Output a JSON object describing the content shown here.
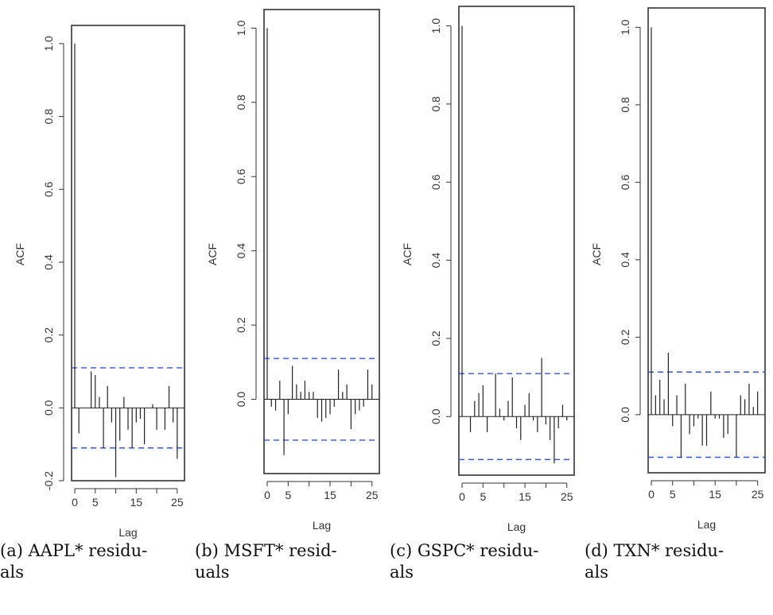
{
  "chart_data": [
    {
      "type": "bar",
      "xlabel": "Lag",
      "ylabel": "ACF",
      "xlim": [
        0,
        26
      ],
      "ylim": [
        -0.2,
        1.05
      ],
      "x_ticks": [
        0,
        5,
        15,
        25
      ],
      "x_tick_labels": [
        "0",
        "5",
        "15",
        "25"
      ],
      "y_ticks": [
        -0.2,
        0.0,
        0.2,
        0.4,
        0.6,
        0.8,
        1.0
      ],
      "y_tick_labels": [
        "-0.2",
        "0.0",
        "0.2",
        "0.4",
        "0.6",
        "0.8",
        "1.0"
      ],
      "confidence_band": [
        0.11,
        -0.11
      ],
      "x": [
        0,
        1,
        2,
        3,
        4,
        5,
        6,
        7,
        8,
        9,
        10,
        11,
        12,
        13,
        14,
        15,
        16,
        17,
        18,
        19,
        20,
        21,
        22,
        23,
        24,
        25,
        26
      ],
      "values": [
        1.0,
        -0.07,
        0.0,
        0.0,
        0.1,
        0.09,
        0.03,
        -0.11,
        0.06,
        -0.04,
        -0.19,
        -0.09,
        0.03,
        -0.06,
        -0.11,
        -0.04,
        -0.03,
        -0.1,
        0.0,
        0.01,
        -0.06,
        0.0,
        -0.06,
        0.06,
        -0.04,
        -0.14,
        0.0
      ],
      "caption": "(a) AAPL* residu-\nals"
    },
    {
      "type": "bar",
      "xlabel": "Lag",
      "ylabel": "ACF",
      "xlim": [
        0,
        26
      ],
      "ylim": [
        -0.2,
        1.05
      ],
      "x_ticks": [
        0,
        5,
        15,
        25
      ],
      "x_tick_labels": [
        "0",
        "5",
        "15",
        "25"
      ],
      "y_ticks": [
        0.0,
        0.2,
        0.4,
        0.6,
        0.8,
        1.0
      ],
      "y_tick_labels": [
        "0.0",
        "0.2",
        "0.4",
        "0.6",
        "0.8",
        "1.0"
      ],
      "confidence_band": [
        0.11,
        -0.11
      ],
      "x": [
        0,
        1,
        2,
        3,
        4,
        5,
        6,
        7,
        8,
        9,
        10,
        11,
        12,
        13,
        14,
        15,
        16,
        17,
        18,
        19,
        20,
        21,
        22,
        23,
        24,
        25,
        26
      ],
      "values": [
        1.0,
        -0.02,
        -0.03,
        0.05,
        -0.15,
        -0.04,
        0.09,
        0.04,
        0.02,
        0.05,
        0.02,
        0.02,
        -0.05,
        -0.06,
        -0.05,
        -0.04,
        -0.02,
        0.08,
        0.02,
        0.04,
        -0.08,
        -0.04,
        -0.03,
        -0.02,
        0.08,
        0.04,
        0.0
      ],
      "caption": "(b)  MSFT*  resid-\nuals"
    },
    {
      "type": "bar",
      "xlabel": "Lag",
      "ylabel": "ACF",
      "xlim": [
        0,
        26
      ],
      "ylim": [
        -0.15,
        1.05
      ],
      "x_ticks": [
        0,
        5,
        15,
        25
      ],
      "x_tick_labels": [
        "0",
        "5",
        "15",
        "25"
      ],
      "y_ticks": [
        0.0,
        0.2,
        0.4,
        0.6,
        0.8,
        1.0
      ],
      "y_tick_labels": [
        "0.0",
        "0.2",
        "0.4",
        "0.6",
        "0.8",
        "1.0"
      ],
      "confidence_band": [
        0.11,
        -0.11
      ],
      "x": [
        0,
        1,
        2,
        3,
        4,
        5,
        6,
        7,
        8,
        9,
        10,
        11,
        12,
        13,
        14,
        15,
        16,
        17,
        18,
        19,
        20,
        21,
        22,
        23,
        24,
        25,
        26
      ],
      "values": [
        1.0,
        0.0,
        -0.04,
        0.04,
        0.06,
        0.08,
        -0.04,
        0.0,
        0.11,
        0.02,
        -0.01,
        0.04,
        0.1,
        -0.03,
        -0.06,
        0.03,
        0.06,
        -0.01,
        -0.04,
        0.15,
        -0.02,
        -0.06,
        -0.12,
        -0.03,
        0.03,
        -0.01,
        0.0
      ],
      "caption": "(c) GSPC* residu-\nals"
    },
    {
      "type": "bar",
      "xlabel": "Lag",
      "ylabel": "ACF",
      "xlim": [
        0,
        26
      ],
      "ylim": [
        -0.15,
        1.05
      ],
      "x_ticks": [
        0,
        5,
        15,
        25
      ],
      "x_tick_labels": [
        "0",
        "5",
        "15",
        "25"
      ],
      "y_ticks": [
        0.0,
        0.2,
        0.4,
        0.6,
        0.8,
        1.0
      ],
      "y_tick_labels": [
        "0.0",
        "0.2",
        "0.4",
        "0.6",
        "0.8",
        "1.0"
      ],
      "confidence_band": [
        0.11,
        -0.11
      ],
      "x": [
        0,
        1,
        2,
        3,
        4,
        5,
        6,
        7,
        8,
        9,
        10,
        11,
        12,
        13,
        14,
        15,
        16,
        17,
        18,
        19,
        20,
        21,
        22,
        23,
        24,
        25,
        26
      ],
      "values": [
        1.0,
        0.05,
        0.09,
        0.04,
        0.16,
        -0.03,
        0.05,
        -0.11,
        0.08,
        -0.05,
        -0.03,
        -0.01,
        -0.08,
        -0.08,
        0.06,
        -0.01,
        -0.01,
        -0.06,
        -0.05,
        0.0,
        -0.11,
        0.05,
        0.04,
        0.08,
        0.02,
        0.06,
        0.0
      ],
      "caption": "(d)  TXN*  residu-\nals"
    }
  ]
}
